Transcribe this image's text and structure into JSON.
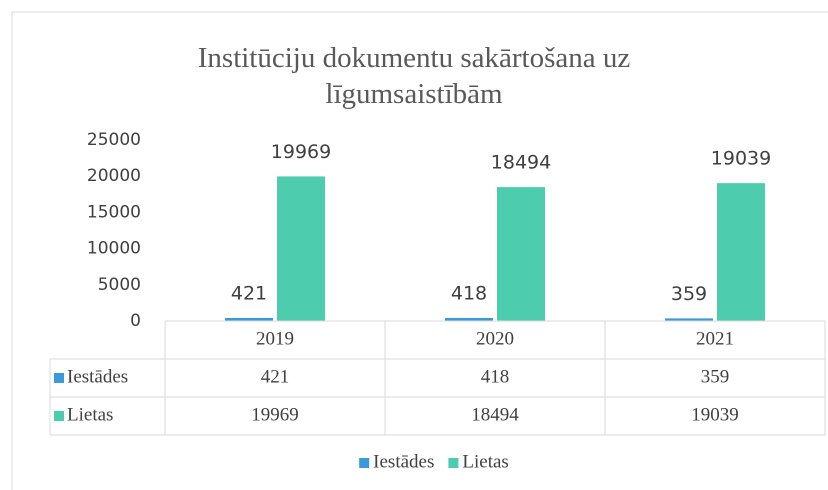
{
  "chart_data": {
    "type": "bar",
    "title": "Institūciju dokumentu sakārtošana uz līgumsaistībām",
    "categories": [
      "2019",
      "2020",
      "2021"
    ],
    "series": [
      {
        "name": "Iestādes",
        "color": "#3a9ad9",
        "values": [
          421,
          418,
          359
        ]
      },
      {
        "name": "Lietas",
        "color": "#4ecdae",
        "values": [
          19969,
          18494,
          19039
        ]
      }
    ],
    "ylim": [
      0,
      25000
    ],
    "yticks": [
      0,
      5000,
      10000,
      15000,
      20000,
      25000
    ],
    "grid": false,
    "legend": "bottom",
    "data_table": true
  }
}
